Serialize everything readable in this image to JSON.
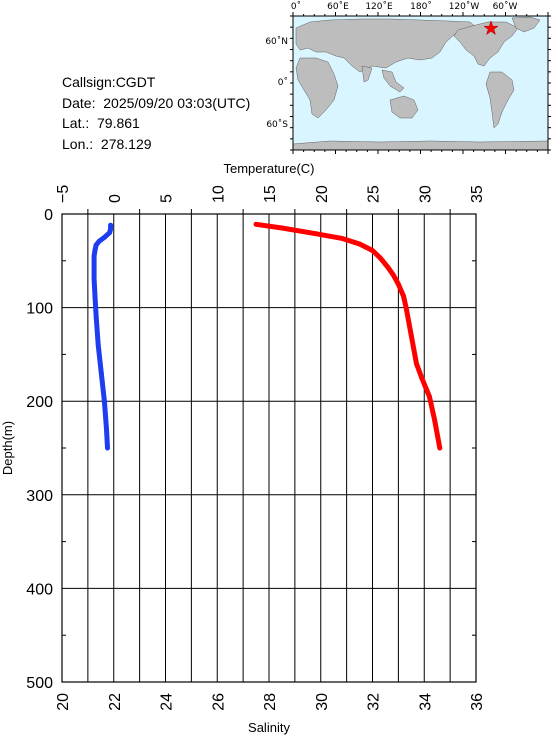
{
  "station": {
    "callsign": "Callsign:CGDT",
    "date": "Date:  2025/09/20 03:03(UTC)",
    "lat": "Lat.:  79.861",
    "lon": "Lon.:  278.129"
  },
  "map": {
    "lon_labels": [
      "0˚",
      "60˚E",
      "120˚E",
      "180˚",
      "120˚W",
      "60˚W"
    ],
    "lat_labels": [
      "60˚N",
      "0˚",
      "60˚S"
    ],
    "ocean_color": "#d9f5ff",
    "land_color": "#bdbdbd",
    "marker_color": "#ff0000"
  },
  "chart_data": {
    "type": "line",
    "ylabel": "Depth(m)",
    "ylim": [
      0,
      500
    ],
    "y_ticks": [
      "0",
      "100",
      "200",
      "300",
      "400",
      "500"
    ],
    "grid": true,
    "temperature_axis": {
      "label": "Temperature(C)",
      "range": [
        -5,
        35
      ],
      "ticks": [
        "−5",
        "0",
        "5",
        "10",
        "15",
        "20",
        "25",
        "30",
        "35"
      ]
    },
    "salinity_axis": {
      "label": "Salinity",
      "range": [
        20,
        36
      ],
      "ticks": [
        "20",
        "22",
        "24",
        "26",
        "28",
        "30",
        "32",
        "34",
        "36"
      ]
    },
    "series": [
      {
        "axis": "temperature",
        "color": "#1e3cf0",
        "points": [
          [
            -0.3,
            12
          ],
          [
            -0.3,
            16
          ],
          [
            -0.4,
            20
          ],
          [
            -0.9,
            25
          ],
          [
            -1.4,
            29
          ],
          [
            -1.7,
            33
          ],
          [
            -1.8,
            38
          ],
          [
            -1.9,
            45
          ],
          [
            -1.9,
            55
          ],
          [
            -1.9,
            70
          ],
          [
            -1.8,
            90
          ],
          [
            -1.7,
            110
          ],
          [
            -1.5,
            140
          ],
          [
            -1.2,
            170
          ],
          [
            -0.9,
            200
          ],
          [
            -0.7,
            230
          ],
          [
            -0.6,
            250
          ]
        ]
      },
      {
        "axis": "salinity",
        "color": "#ff0000",
        "points": [
          [
            27.5,
            11
          ],
          [
            28.5,
            15
          ],
          [
            29.8,
            21
          ],
          [
            30.8,
            26
          ],
          [
            31.5,
            32
          ],
          [
            32.0,
            39
          ],
          [
            32.3,
            47
          ],
          [
            32.6,
            57
          ],
          [
            32.8,
            65
          ],
          [
            33.0,
            75
          ],
          [
            33.2,
            88
          ],
          [
            33.3,
            100
          ],
          [
            33.4,
            115
          ],
          [
            33.5,
            130
          ],
          [
            33.6,
            145
          ],
          [
            33.7,
            160
          ],
          [
            33.9,
            175
          ],
          [
            34.2,
            195
          ],
          [
            34.4,
            220
          ],
          [
            34.6,
            250
          ]
        ]
      }
    ]
  }
}
